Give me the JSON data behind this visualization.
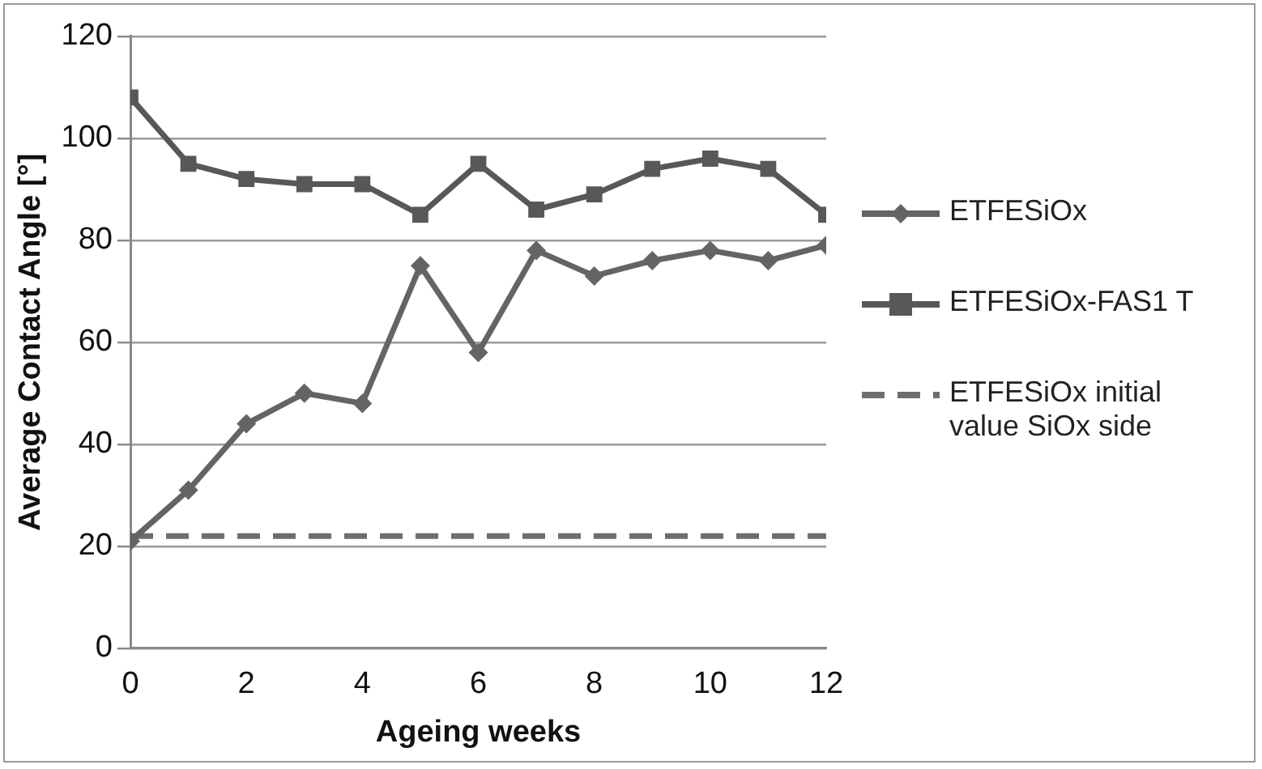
{
  "chart_data": {
    "type": "line",
    "xlabel": "Ageing weeks",
    "ylabel": "Average Contact Angle [°]",
    "x": [
      0,
      1,
      2,
      3,
      4,
      5,
      6,
      7,
      8,
      9,
      10,
      11,
      12
    ],
    "series": [
      {
        "name": "ETFESiOx",
        "color": "#646464",
        "marker": "diamond",
        "values": [
          21,
          31,
          44,
          50,
          48,
          75,
          58,
          78,
          73,
          76,
          78,
          76,
          79
        ]
      },
      {
        "name": "ETFESiOx-FAS1 T",
        "color": "#585858",
        "marker": "square",
        "values": [
          108,
          95,
          92,
          91,
          91,
          85,
          95,
          86,
          89,
          94,
          96,
          94,
          85
        ]
      },
      {
        "name": "ETFESiOx initial value SiOx side",
        "color": "#6e6e6e",
        "marker": "none",
        "line_style": "dashed",
        "values": [
          22,
          22,
          22,
          22,
          22,
          22,
          22,
          22,
          22,
          22,
          22,
          22,
          22
        ]
      }
    ],
    "xlim": [
      0,
      12
    ],
    "xticks": [
      0,
      2,
      4,
      6,
      8,
      10,
      12
    ],
    "ylim": [
      0,
      120
    ],
    "yticks": [
      0,
      20,
      40,
      60,
      80,
      100,
      120
    ],
    "grid": "y",
    "legend": "right"
  }
}
